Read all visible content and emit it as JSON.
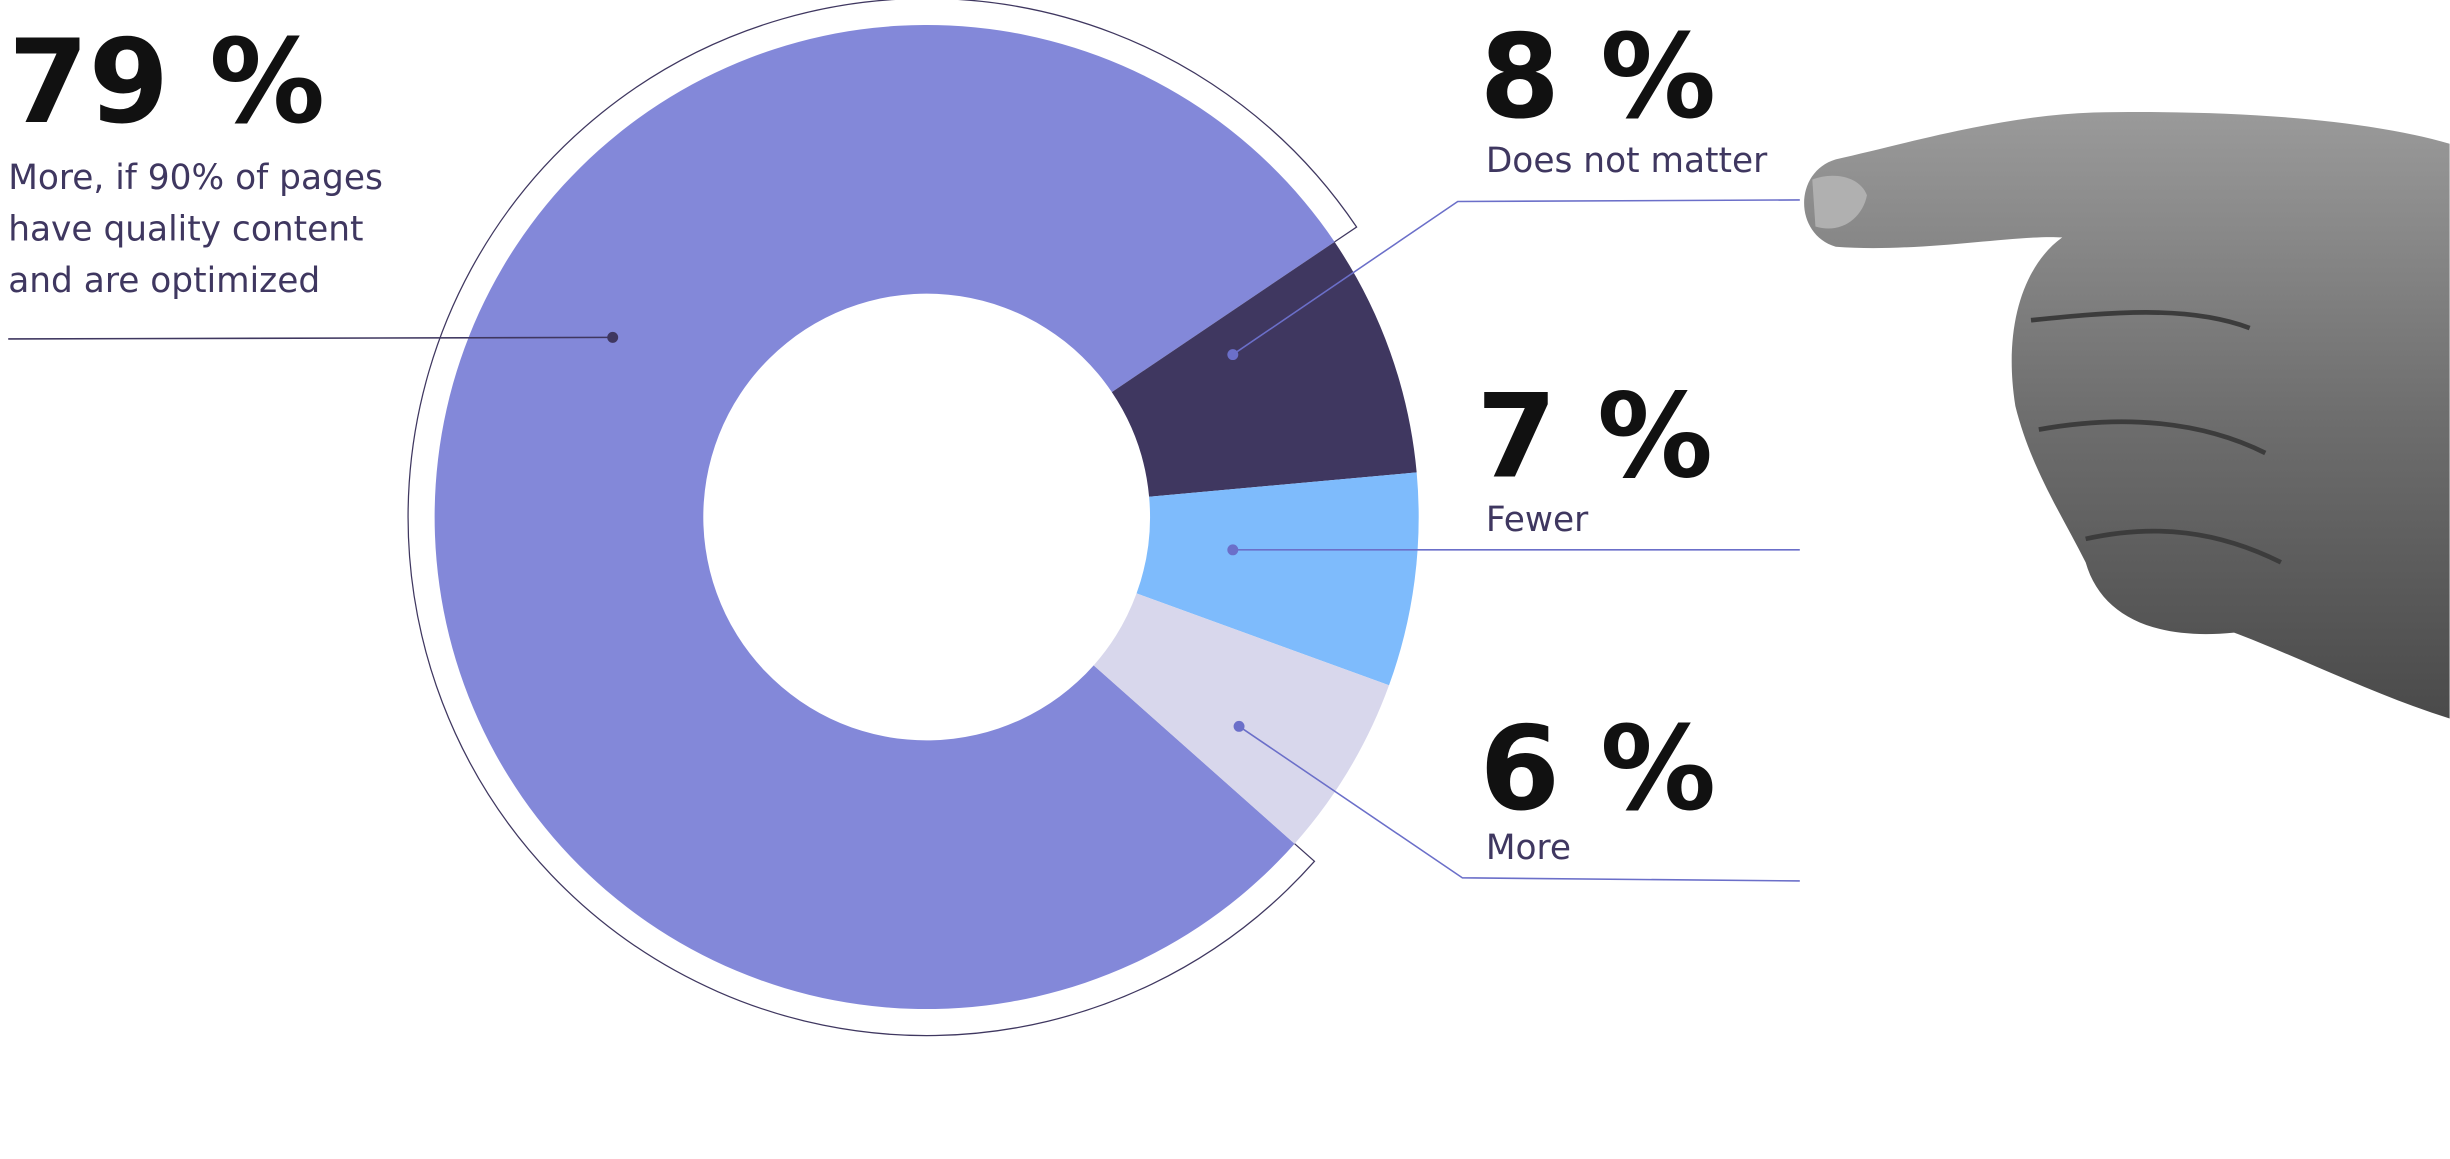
{
  "chart_data": {
    "type": "donut",
    "categories": [
      "More, if 90% of pages have quality content and are optimized",
      "Does not matter",
      "Fewer",
      "More"
    ],
    "values": [
      79,
      8,
      7,
      6
    ],
    "value_labels": [
      "79 %",
      "8 %",
      "7 %",
      "6 %"
    ],
    "colors": [
      "#8388d9",
      "#3f3760",
      "#7ebbfc",
      "#d8d7ec"
    ]
  }
}
